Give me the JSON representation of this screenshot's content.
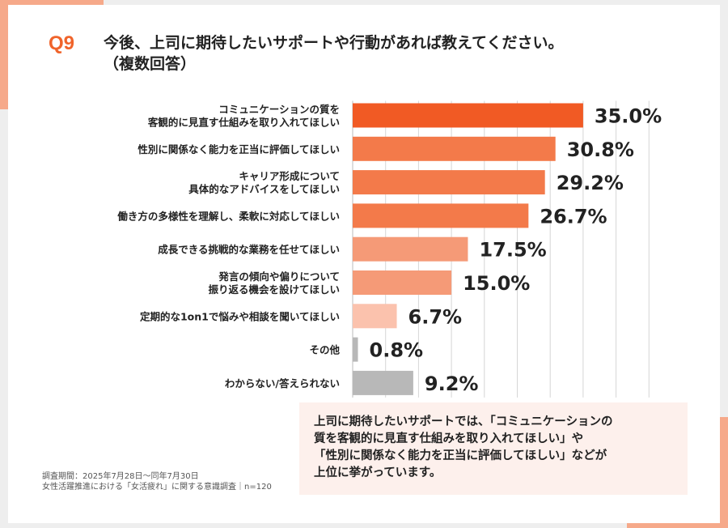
{
  "question": {
    "number": "Q9",
    "text_line1": "今後、上司に期待したいサポートや行動があれば教えてください。",
    "text_line2": "（複数回答）"
  },
  "chart_data": {
    "type": "bar",
    "orientation": "horizontal",
    "unit": "%",
    "xlim": [
      0,
      45
    ],
    "categories": [
      [
        "コミュニケーションの質を",
        "客観的に見直す仕組みを取り入れてほしい"
      ],
      [
        "性別に関係なく能力を正当に評価してほしい"
      ],
      [
        "キャリア形成について",
        "具体的なアドバイスをしてほしい"
      ],
      [
        "働き方の多様性を理解し、柔軟に対応してほしい"
      ],
      [
        "成長できる挑戦的な業務を任せてほしい"
      ],
      [
        "発言の傾向や偏りについて",
        "振り返る機会を設けてほしい"
      ],
      [
        "定期的な1on1で悩みや相談を聞いてほしい"
      ],
      [
        "その他"
      ],
      [
        "わからない/答えられない"
      ]
    ],
    "values": [
      35.0,
      30.8,
      29.2,
      26.7,
      17.5,
      15.0,
      6.7,
      0.8,
      9.2
    ],
    "value_labels": [
      "35.0%",
      "30.8%",
      "29.2%",
      "26.7%",
      "17.5%",
      "15.0%",
      "6.7%",
      "0.8%",
      "9.2%"
    ],
    "colors": [
      "#f15a24",
      "#f37a4a",
      "#f37a4a",
      "#f37a4a",
      "#f59a77",
      "#f59a77",
      "#fbc2ad",
      "#b8b8b8",
      "#b8b8b8"
    ],
    "grid_color": "#d6d6d6"
  },
  "note": {
    "lines": [
      "上司に期待したいサポートでは、「コミュニケーションの",
      "質を客観的に見直す仕組みを取り入れてほしい」や",
      "「性別に関係なく能力を正当に評価してほしい」などが",
      "上位に挙がっています。"
    ]
  },
  "footer": {
    "line1": "調査期間：2025年7月28日～同年7月30日",
    "line2": "女性活躍推進における「女活疲れ」に関する意識調査｜n=120"
  },
  "accent_color": "#f0642b",
  "decor_color": "#f6a98a"
}
